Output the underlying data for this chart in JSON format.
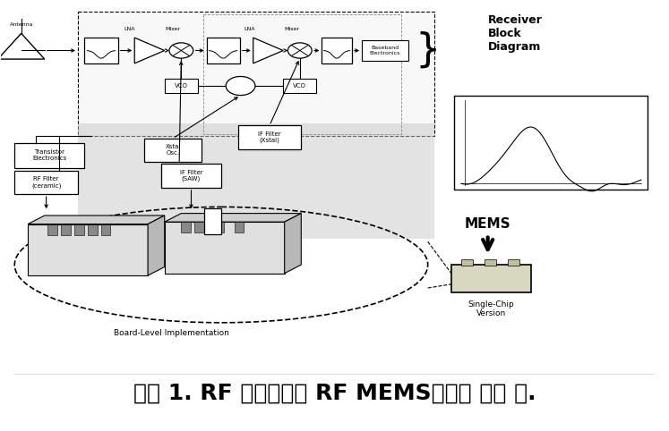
{
  "caption": "그림 1. RF 송수신기에 RF MEMS기술의 적용 예.",
  "caption_fontsize": 18,
  "bg_color": "#ffffff",
  "fig_width": 7.47,
  "fig_height": 4.82,
  "receiver_block_text": "Receiver\nBlock\nDiagram",
  "board_level_text": "Board-Level Implementation",
  "mems_text": "MEMS",
  "single_chip_text": "Single-Chip\nVersion",
  "antenna_text": "Antenna",
  "baseband_text": "Baseband\nElectronics",
  "transistor_text": "Transistor\nElectronics",
  "xstal_osc_text": "Xstal\nOsc.",
  "if_filter_xstal_text": "IF Filter\n(Xstal)",
  "if_filter_saw_text": "IF Filter\n(SAW)",
  "rf_filter_text": "RF Filter\n(ceramic)",
  "lna_text": "LNA",
  "mixer_text": "Mixer",
  "vco_text": "VCO"
}
